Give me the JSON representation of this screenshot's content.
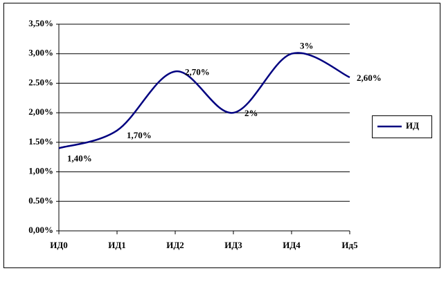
{
  "chart_data": {
    "type": "line",
    "categories": [
      "ИД0",
      "ИД1",
      "ИД2",
      "ИД3",
      "ИД4",
      "Ид5"
    ],
    "series": [
      {
        "name": "ИД",
        "color": "#000080",
        "values": [
          1.4,
          1.7,
          2.7,
          2.0,
          3.0,
          2.6
        ],
        "value_labels": [
          "1,40%",
          "1,70%",
          "2,70%",
          "2%",
          "3%",
          "2,60%"
        ]
      }
    ],
    "ylim": [
      0,
      3.5
    ],
    "yticks": [
      {
        "value": 0,
        "label": "0,00%"
      },
      {
        "value": 0.5,
        "label": "0.50%"
      },
      {
        "value": 1,
        "label": "1,00%"
      },
      {
        "value": 1.5,
        "label": "1.50%"
      },
      {
        "value": 2,
        "label": "2,00%"
      },
      {
        "value": 2.5,
        "label": "2.50%"
      },
      {
        "value": 3,
        "label": "3,00%"
      },
      {
        "value": 3.5,
        "label": "3,50%"
      }
    ],
    "grid": true,
    "smooth": true,
    "legend": "right"
  }
}
